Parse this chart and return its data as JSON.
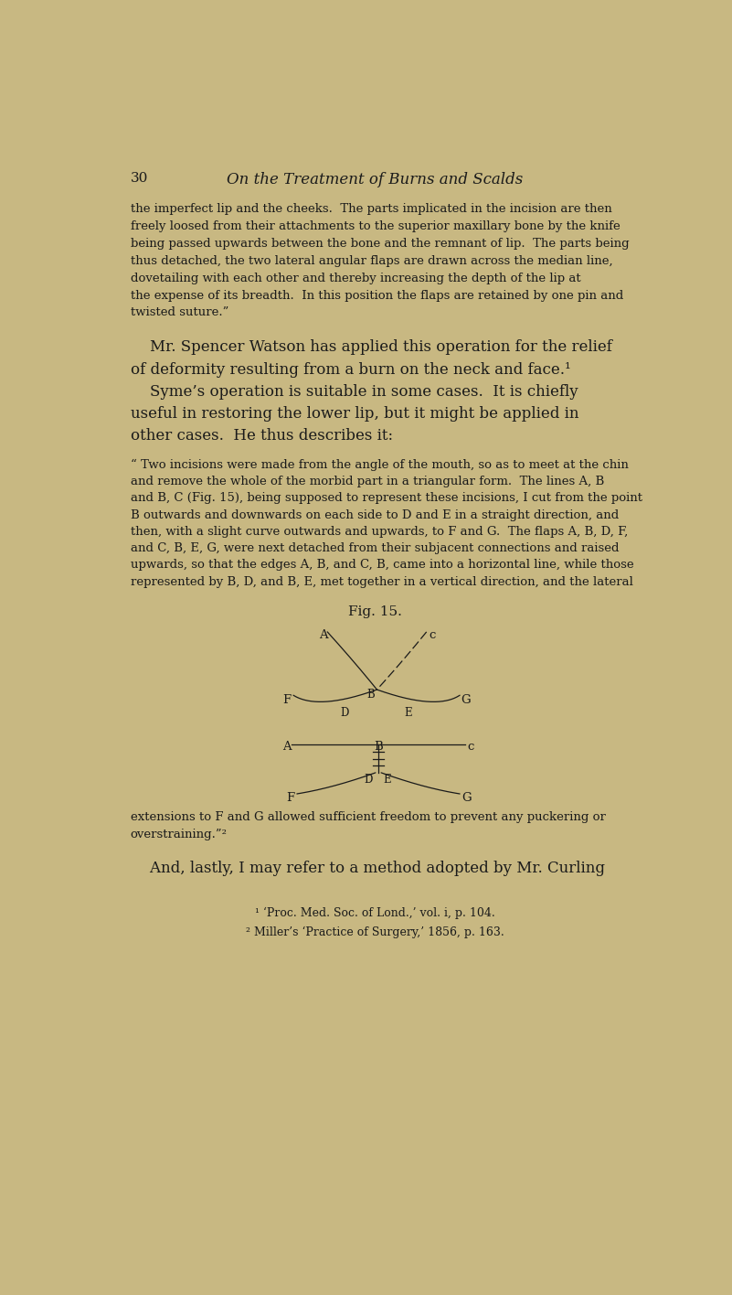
{
  "bg_color": "#c8b882",
  "text_color": "#1a1a1a",
  "page_number": "30",
  "header_title": "On the Treatment of Burns and Scalds",
  "body_text_small": [
    "the imperfect lip and the cheeks.  The parts implicated in the incision are then",
    "freely loosed from their attachments to the superior maxillary bone by the knife",
    "being passed upwards between the bone and the remnant of lip.  The parts being",
    "thus detached, the two lateral angular flaps are drawn across the median line,",
    "dovetailing with each other and thereby increasing the depth of the lip at",
    "the expense of its breadth.  In this position the flaps are retained by one pin and",
    "twisted suture.”"
  ],
  "para2_large": [
    "    Mr. Spencer Watson has applied this operation for the relief",
    "of deformity resulting from a burn on the neck and face.¹"
  ],
  "para3_large": [
    "    Syme’s operation is suitable in some cases.  It is chiefly",
    "useful in restoring the lower lip, but it might be applied in",
    "other cases.  He thus describes it:"
  ],
  "para4_small": [
    "“ Two incisions were made from the angle of the mouth, so as to meet at the chin",
    "and remove the whole of the morbid part in a triangular form.  The lines A, B",
    "and B, C (Fig. 15), being supposed to represent these incisions, I cut from the point",
    "B outwards and downwards on each side to D and E in a straight direction, and",
    "then, with a slight curve outwards and upwards, to F and G.  The flaps A, B, D, F,",
    "and C, B, E, G, were next detached from their subjacent connections and raised",
    "upwards, so that the edges A, B, and C, B, came into a horizontal line, while those",
    "represented by B, D, and B, E, met together in a vertical direction, and the lateral"
  ],
  "fig_caption": "Fig. 15.",
  "para5_small": [
    "extensions to F and G allowed sufficient freedom to prevent any puckering or",
    "overstraining.”²"
  ],
  "para6_large": "    And, lastly, I may refer to a method adopted by Mr. Curling",
  "footnote1": "¹ ‘Proc. Med. Soc. of Lond.,’ vol. i, p. 104.",
  "footnote2": "² Miller’s ‘Practice of Surgery,’ 1856, p. 163."
}
